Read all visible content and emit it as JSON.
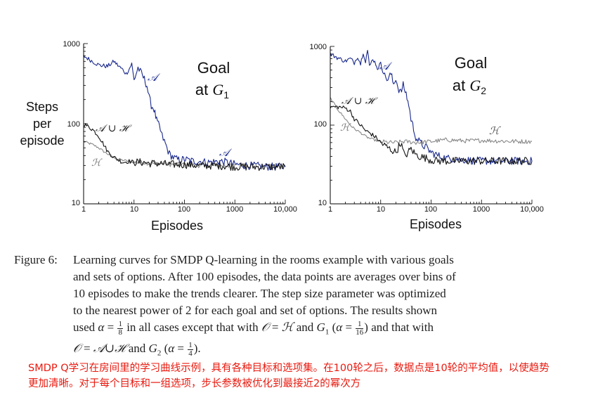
{
  "charts": [
    {
      "title_line1": "Goal",
      "title_line2_prefix": "at ",
      "title_line2_symbol": "G",
      "title_line2_sub": "1",
      "ylabel_lines": [
        "Steps",
        "per",
        "episode"
      ],
      "xlabel": "Episodes",
      "x_ticks": [
        "1",
        "10",
        "100",
        "1000",
        "10,000"
      ],
      "y_ticks": [
        "10",
        "100",
        "1000"
      ],
      "labels": {
        "A": "𝒜",
        "AuH": "𝒜 ∪ ℋ",
        "H": "ℋ",
        "A2": "𝒜"
      }
    },
    {
      "title_line1": "Goal",
      "title_line2_prefix": "at ",
      "title_line2_symbol": "G",
      "title_line2_sub": "2",
      "ylabel_lines": [],
      "xlabel": "Episodes",
      "x_ticks": [
        "1",
        "10",
        "100",
        "1000",
        "10,000"
      ],
      "y_ticks": [
        "10",
        "100",
        "1000"
      ],
      "labels": {
        "A": "𝒜",
        "AuH": "𝒜 ∪ ℋ",
        "H": "ℋ",
        "H2": "ℋ"
      }
    }
  ],
  "chart_data": [
    {
      "type": "line",
      "xscale": "log",
      "yscale": "log",
      "xlim": [
        1,
        10000
      ],
      "ylim": [
        10,
        1000
      ],
      "series": [
        {
          "name": "𝒜",
          "color": "#1a2a8c",
          "x": [
            1,
            1.5,
            2,
            3,
            4,
            5,
            6,
            7,
            8,
            9,
            10,
            12,
            14,
            16,
            18,
            20,
            22,
            25,
            28,
            32,
            36,
            40,
            45,
            50,
            60,
            70,
            80,
            100,
            150,
            200,
            300,
            500,
            700,
            1000,
            2000,
            5000,
            10000
          ],
          "y": [
            700,
            600,
            540,
            520,
            600,
            520,
            470,
            420,
            480,
            560,
            350,
            500,
            420,
            360,
            300,
            210,
            170,
            150,
            110,
            90,
            70,
            60,
            50,
            42,
            38,
            36,
            35,
            36,
            34,
            34,
            33,
            34,
            33,
            31,
            30,
            29,
            29
          ]
        },
        {
          "name": "𝒜 ∪ ℋ",
          "color": "#111111",
          "x": [
            1,
            1.5,
            2,
            2.5,
            3,
            4,
            5,
            6,
            8,
            10,
            15,
            20,
            30,
            50,
            100,
            200,
            500,
            1000,
            2000,
            5000,
            10000
          ],
          "y": [
            100,
            85,
            70,
            55,
            45,
            38,
            35,
            33,
            34,
            33,
            33,
            32,
            32,
            31,
            31,
            30,
            30,
            29,
            29,
            29,
            29
          ]
        },
        {
          "name": "ℋ",
          "color": "#888888",
          "x": [
            1,
            1.5,
            2,
            2.5,
            3,
            4,
            5,
            6,
            8,
            10,
            15,
            20,
            30,
            50,
            100,
            200,
            500,
            1000
          ],
          "y": [
            60,
            55,
            50,
            45,
            42,
            38,
            36,
            35,
            34,
            33,
            33,
            32,
            32,
            31,
            31,
            30,
            30,
            30
          ]
        }
      ]
    },
    {
      "type": "line",
      "xscale": "log",
      "yscale": "log",
      "xlim": [
        1,
        10000
      ],
      "ylim": [
        10,
        1000
      ],
      "series": [
        {
          "name": "𝒜",
          "color": "#1a2a8c",
          "x": [
            1,
            1.5,
            2,
            2.5,
            3,
            3.5,
            4,
            4.5,
            5,
            5.5,
            6,
            7,
            8,
            9,
            10,
            12,
            14,
            16,
            18,
            20,
            22,
            25,
            28,
            32,
            36,
            40,
            45,
            50,
            60,
            70,
            80,
            100,
            150,
            200,
            500,
            1000,
            2000,
            5000,
            10000
          ],
          "y": [
            800,
            700,
            650,
            700,
            620,
            750,
            600,
            850,
            650,
            900,
            550,
            700,
            600,
            500,
            650,
            420,
            380,
            450,
            330,
            400,
            300,
            260,
            320,
            250,
            180,
            120,
            90,
            70,
            60,
            55,
            52,
            45,
            40,
            38,
            36,
            35,
            35,
            35,
            35
          ]
        },
        {
          "name": "𝒜 ∪ ℋ",
          "color": "#111111",
          "x": [
            1,
            1.5,
            2,
            2.5,
            3,
            4,
            5,
            6,
            8,
            10,
            12,
            15,
            20,
            25,
            30,
            40,
            50,
            60,
            80,
            100,
            150,
            200,
            500,
            1000,
            2000,
            5000,
            10000
          ],
          "y": [
            170,
            170,
            165,
            150,
            120,
            100,
            85,
            80,
            70,
            60,
            55,
            50,
            45,
            60,
            40,
            50,
            42,
            40,
            38,
            36,
            35,
            35,
            35,
            35,
            35,
            35,
            35
          ]
        },
        {
          "name": "ℋ",
          "color": "#888888",
          "x": [
            1,
            1.5,
            2,
            2.5,
            3,
            4,
            5,
            6,
            8,
            10,
            15,
            20,
            30,
            50,
            100,
            200,
            500,
            1000,
            2000,
            5000,
            10000
          ],
          "y": [
            220,
            150,
            120,
            100,
            90,
            80,
            72,
            68,
            64,
            62,
            60,
            60,
            62,
            60,
            62,
            65,
            63,
            64,
            63,
            62,
            62
          ]
        }
      ]
    }
  ],
  "caption": {
    "label": "Figure 6:",
    "l1": "Learning curves for SMDP Q-learning in the rooms example with various goals",
    "l2": "and sets of options. After 100 episodes, the data points are averages over bins of",
    "l3": "10 episodes to make the trends clearer. The step size parameter was optimized",
    "l4": "to the nearest power of 2 for each goal and set of options. The results shown",
    "l5a": "used ",
    "alpha": "α",
    "eq": " = ",
    "one": "1",
    "eight": "8",
    "l5b": " in all cases except that with ",
    "O": "𝒪",
    "H": "ℋ",
    "l5c": " and ",
    "G": "G",
    "sub1": "1",
    "paren_open": " (",
    "sixteen": "16",
    "paren_close": ")",
    "l5d": " and that with",
    "AuH": "𝒜∪ℋ",
    "l6b": " and ",
    "sub2": "2",
    "four": "4",
    "l6end": ")."
  },
  "translation": {
    "l1": "SMDP Q学习在房间里的学习曲线示例，具有各种目标和选项集。在100轮之后，数据点是10轮的平均值，以使趋势",
    "l2": "更加清晰。对于每个目标和一组选项，步长参数被优化到最接近2的幂次方"
  }
}
